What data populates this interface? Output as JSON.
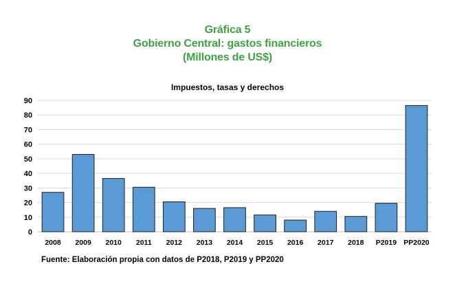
{
  "title": {
    "line1": "Gráfica 5",
    "line2": "Gobierno Central: gastos financieros",
    "line3": "(Millones de US$)"
  },
  "colors": {
    "title": "#3fa243",
    "bar_fill": "#5b9bd5",
    "bar_stroke": "#1f1f1f",
    "grid": "#d9d9d9"
  },
  "source": "Fuente: Elaboración propia con datos de P2018, P2019 y PP2020",
  "chart_data": {
    "type": "bar",
    "title": "Impuestos, tasas y derechos",
    "xlabel": "",
    "ylabel": "",
    "categories": [
      "2008",
      "2009",
      "2010",
      "2011",
      "2012",
      "2013",
      "2014",
      "2015",
      "2016",
      "2017",
      "2018",
      "P2019",
      "PP2020"
    ],
    "values": [
      27,
      53,
      36.5,
      30.5,
      20.5,
      16,
      16.5,
      11.5,
      8,
      14,
      10.5,
      19.5,
      86.5
    ],
    "ylim": [
      0,
      90
    ],
    "yticks": [
      "0",
      "10",
      "20",
      "30",
      "40",
      "50",
      "60",
      "70",
      "80",
      "90"
    ],
    "grid": true,
    "legend": "none"
  }
}
